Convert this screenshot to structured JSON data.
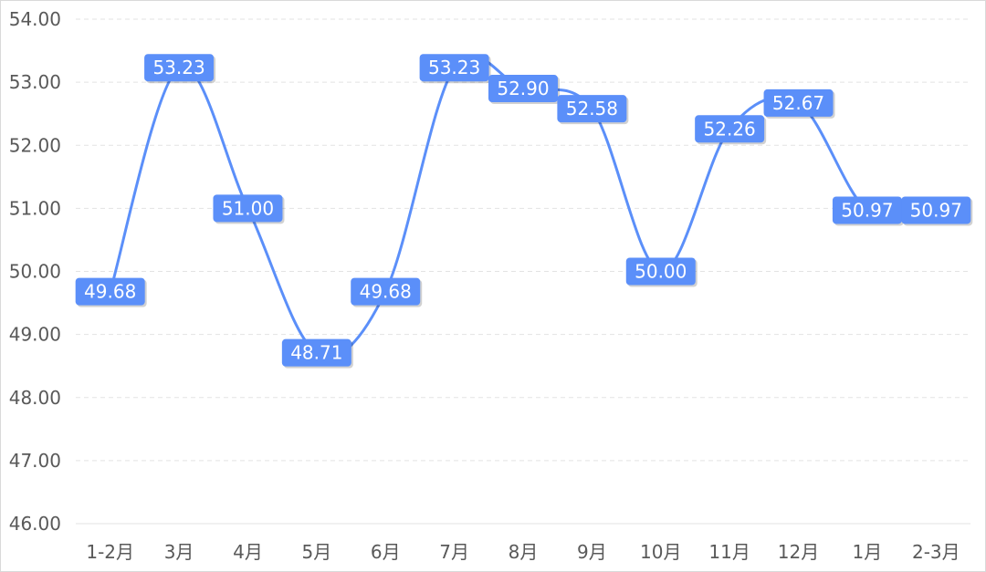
{
  "chart_data": {
    "type": "line",
    "categories": [
      "1-2月",
      "3月",
      "4月",
      "5月",
      "6月",
      "7月",
      "8月",
      "9月",
      "10月",
      "11月",
      "12月",
      "1月",
      "2-3月"
    ],
    "series": [
      {
        "values": [
          49.68,
          53.23,
          51.0,
          48.71,
          49.68,
          53.23,
          52.9,
          52.58,
          50.0,
          52.26,
          52.67,
          50.97,
          50.97
        ],
        "labels": [
          "49.68",
          "53.23",
          "51.00",
          "48.71",
          "49.68",
          "53.23",
          "52.90",
          "52.58",
          "50.00",
          "52.26",
          "52.67",
          "50.97",
          "50.97"
        ]
      }
    ],
    "ylim": [
      46,
      54
    ],
    "yticks": [
      "46.00",
      "47.00",
      "48.00",
      "49.00",
      "50.00",
      "51.00",
      "52.00",
      "53.00",
      "54.00"
    ],
    "line_color": "#5b8ff9",
    "label_bg_color": "#5b8ff9",
    "smooth": true,
    "grid": "horizontal dashed",
    "legend": "none"
  }
}
